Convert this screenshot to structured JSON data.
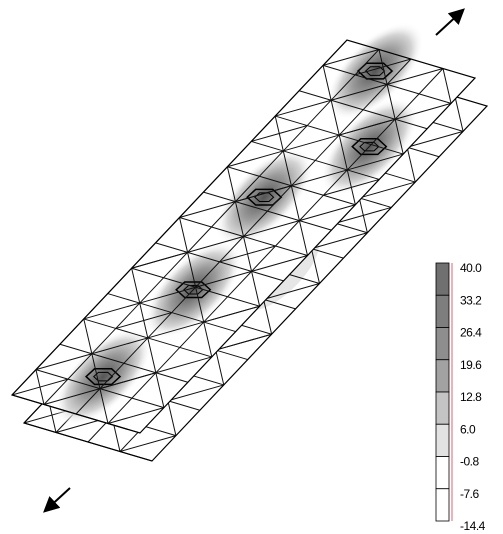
{
  "legend": {
    "labels": [
      "40.0",
      "33.2",
      "26.4",
      "19.6",
      "12.8",
      "6.0",
      "-0.8",
      "-7.6",
      "-14.4"
    ]
  }
}
